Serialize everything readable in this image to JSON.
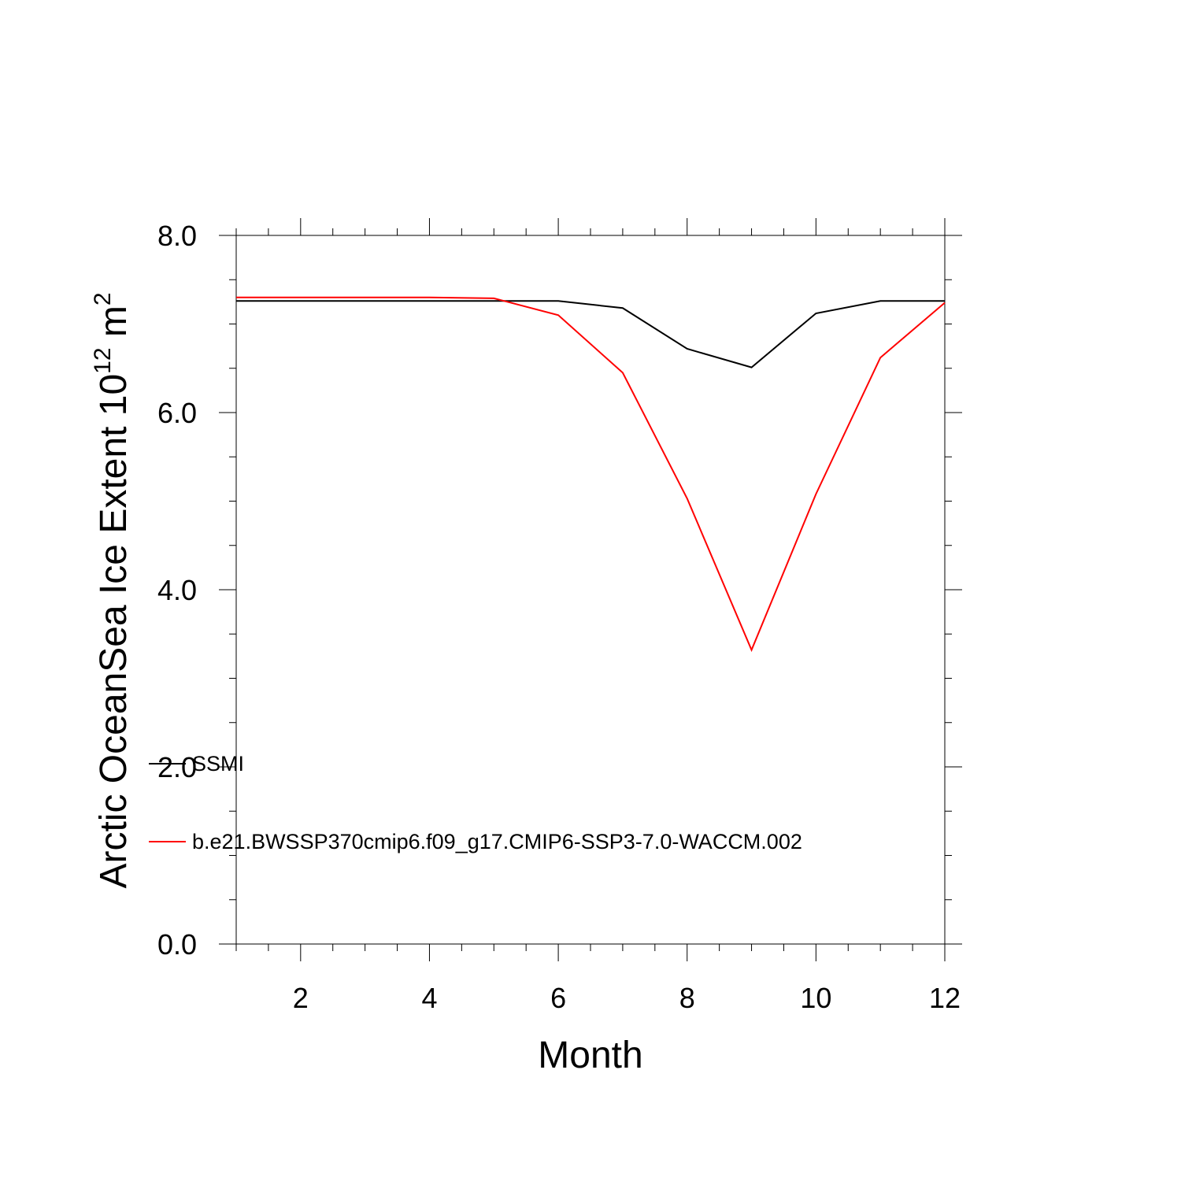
{
  "chart_data": {
    "type": "line",
    "xlabel": "Month",
    "ylabel": {
      "text": "Arctic OceanSea Ice Extent 10",
      "exponent": "12",
      "unit": "m",
      "unit_exponent": "2"
    },
    "xlim": [
      1,
      12
    ],
    "ylim": [
      0,
      8
    ],
    "x_major_ticks": [
      2,
      4,
      6,
      8,
      10,
      12
    ],
    "x_tick_labels": [
      "2",
      "4",
      "6",
      "8",
      "10",
      "12"
    ],
    "y_major_ticks": [
      0,
      2,
      4,
      6,
      8
    ],
    "y_tick_labels": [
      "0.0",
      "2.0",
      "4.0",
      "6.0",
      "8.0"
    ],
    "grid": false,
    "legend_position": "lower-left inside",
    "x": [
      1,
      2,
      3,
      4,
      5,
      6,
      7,
      8,
      9,
      10,
      11,
      12
    ],
    "series": [
      {
        "name": "SSMI",
        "color": "#000000",
        "values": [
          7.26,
          7.26,
          7.26,
          7.26,
          7.26,
          7.26,
          7.18,
          6.72,
          6.51,
          7.12,
          7.26,
          7.26
        ]
      },
      {
        "name": "b.e21.BWSSP370cmip6.f09_g17.CMIP6-SSP3-7.0-WACCM.002",
        "color": "#ff0000",
        "values": [
          7.3,
          7.3,
          7.3,
          7.3,
          7.29,
          7.1,
          6.45,
          5.03,
          3.32,
          5.08,
          6.62,
          7.24
        ]
      }
    ]
  }
}
